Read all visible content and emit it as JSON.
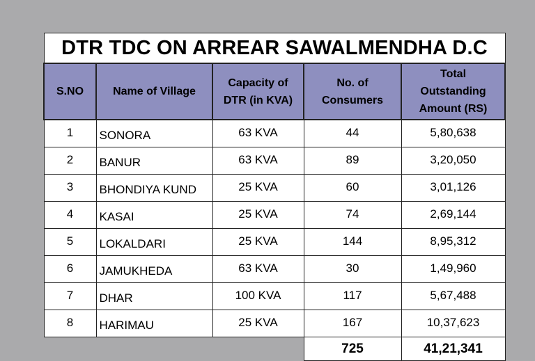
{
  "title": "DTR TDC ON ARREAR SAWALMENDHA D.C",
  "headers": {
    "sno": "S.NO",
    "village": "Name of Village",
    "capacity_line1": "Capacity of",
    "capacity_line2": "DTR (in KVA)",
    "consumers_line1": "No. of",
    "consumers_line2": "Consumers",
    "amount_line1": "Total",
    "amount_line2": "Outstanding",
    "amount_line3": "Amount (RS)"
  },
  "rows": [
    {
      "sno": "1",
      "village": "SONORA",
      "capacity": "63 KVA",
      "consumers": "44",
      "amount": "5,80,638"
    },
    {
      "sno": "2",
      "village": "BANUR",
      "capacity": "63 KVA",
      "consumers": "89",
      "amount": "3,20,050"
    },
    {
      "sno": "3",
      "village": "BHONDIYA KUND",
      "capacity": "25 KVA",
      "consumers": "60",
      "amount": "3,01,126"
    },
    {
      "sno": "4",
      "village": "KASAI",
      "capacity": "25 KVA",
      "consumers": "74",
      "amount": "2,69,144"
    },
    {
      "sno": "5",
      "village": "LOKALDARI",
      "capacity": "25 KVA",
      "consumers": "144",
      "amount": "8,95,312"
    },
    {
      "sno": "6",
      "village": "JAMUKHEDA",
      "capacity": "63 KVA",
      "consumers": "30",
      "amount": "1,49,960"
    },
    {
      "sno": "7",
      "village": "DHAR",
      "capacity": "100 KVA",
      "consumers": "117",
      "amount": "5,67,488"
    },
    {
      "sno": "8",
      "village": "HARIMAU",
      "capacity": "25 KVA",
      "consumers": "167",
      "amount": "10,37,623"
    }
  ],
  "totals": {
    "consumers": "725",
    "amount": "41,21,341"
  },
  "colors": {
    "background": "#aaaaac",
    "header_fill": "#8e8fbf",
    "cell_fill": "#ffffff"
  }
}
